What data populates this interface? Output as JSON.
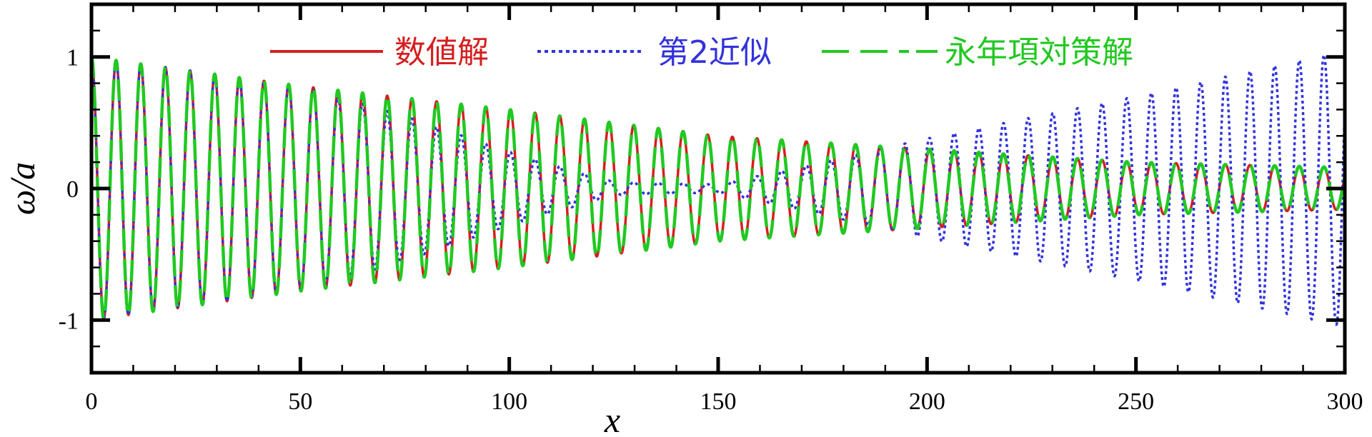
{
  "chart_data": {
    "type": "line",
    "xlabel": "x",
    "ylabel": "ω/a",
    "xlim": [
      0,
      300
    ],
    "ylim": [
      -1.4,
      1.4
    ],
    "x_ticks": [
      0,
      50,
      100,
      150,
      200,
      250,
      300
    ],
    "x_tick_labels": [
      "0",
      "50",
      "100",
      "150",
      "200",
      "250",
      "300"
    ],
    "y_ticks": [
      1,
      0,
      -1
    ],
    "y_tick_labels": [
      "1",
      "0",
      "-1"
    ],
    "legend_placement": "top-center",
    "series": [
      {
        "name": "数値解",
        "color": "#d42020",
        "style": "solid",
        "period": 5.9,
        "envelope": [
          [
            0,
            1.0
          ],
          [
            50,
            0.78
          ],
          [
            100,
            0.6
          ],
          [
            150,
            0.4
          ],
          [
            200,
            0.3
          ],
          [
            250,
            0.2
          ],
          [
            300,
            0.16
          ]
        ]
      },
      {
        "name": "第2近似",
        "color": "#3232dc",
        "style": "dotted",
        "period": 5.9,
        "envelope": [
          [
            0,
            1.0
          ],
          [
            50,
            0.78
          ],
          [
            75,
            0.55
          ],
          [
            100,
            0.28
          ],
          [
            125,
            0.05
          ],
          [
            150,
            0.03
          ],
          [
            175,
            0.2
          ],
          [
            200,
            0.38
          ],
          [
            250,
            0.7
          ],
          [
            300,
            1.05
          ]
        ]
      },
      {
        "name": "永年項対策解",
        "color": "#22c822",
        "style": "dashed",
        "period": 5.9,
        "envelope": [
          [
            0,
            1.0
          ],
          [
            50,
            0.78
          ],
          [
            100,
            0.6
          ],
          [
            150,
            0.4
          ],
          [
            200,
            0.3
          ],
          [
            250,
            0.2
          ],
          [
            300,
            0.16
          ]
        ]
      }
    ]
  }
}
